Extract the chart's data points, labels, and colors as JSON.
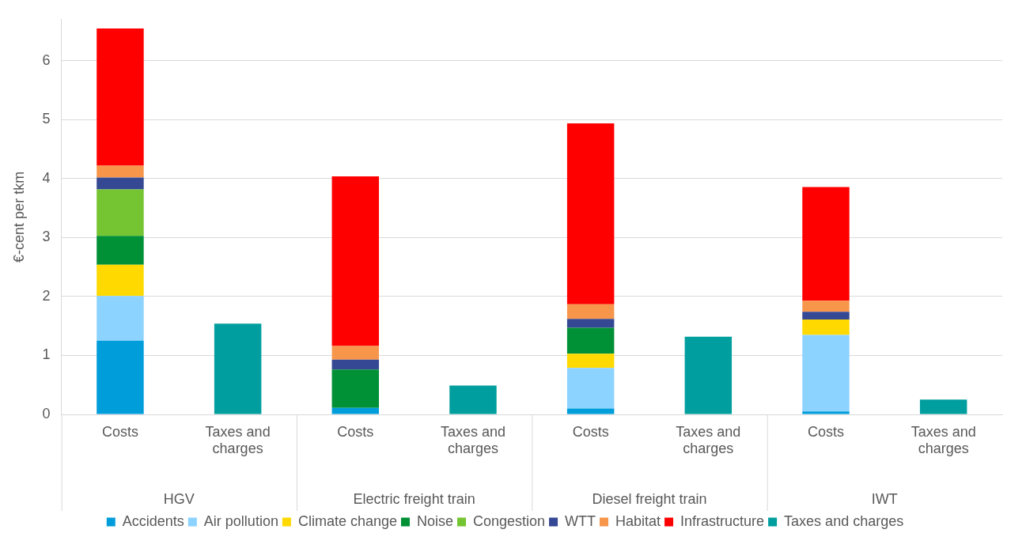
{
  "chart_data": {
    "type": "bar",
    "stacked": true,
    "ylabel": "€-cent per tkm",
    "categories": [
      "Costs",
      "Taxes and charges",
      "Costs",
      "Taxes and charges",
      "Costs",
      "Taxes and charges",
      "Costs",
      "Taxes and charges"
    ],
    "annotations": [
      "HGV",
      "Electric freight train",
      "Diesel freight train",
      "IWT"
    ],
    "series": [
      {
        "name": "Accidents",
        "color": "#009ddb",
        "values": [
          1.25,
          null,
          0.11,
          null,
          0.1,
          null,
          0.05,
          null
        ]
      },
      {
        "name": "Air pollution",
        "color": "#8dd3ff",
        "values": [
          0.76,
          null,
          null,
          null,
          0.69,
          null,
          1.3,
          null
        ]
      },
      {
        "name": "Climate change",
        "color": "#ffd900",
        "values": [
          0.53,
          null,
          null,
          null,
          0.24,
          null,
          0.26,
          null
        ]
      },
      {
        "name": "Noise",
        "color": "#009036",
        "values": [
          0.49,
          null,
          0.65,
          null,
          0.44,
          null,
          null,
          null
        ]
      },
      {
        "name": "Congestion",
        "color": "#74c531",
        "values": [
          0.79,
          null,
          null,
          null,
          null,
          null,
          null,
          null
        ]
      },
      {
        "name": "WTT",
        "color": "#344893",
        "values": [
          0.2,
          null,
          0.17,
          null,
          0.15,
          null,
          0.13,
          null
        ]
      },
      {
        "name": "Habitat",
        "color": "#f7964a",
        "values": [
          0.2,
          null,
          0.23,
          null,
          0.25,
          null,
          0.19,
          null
        ]
      },
      {
        "name": "Infrastructure",
        "color": "#ff0000",
        "values": [
          2.33,
          null,
          2.88,
          null,
          3.07,
          null,
          1.93,
          null
        ]
      },
      {
        "name": "Taxes and charges",
        "color": "#009e9e",
        "values": [
          null,
          1.54,
          null,
          0.49,
          null,
          1.32,
          null,
          0.25
        ]
      }
    ],
    "ylim": [
      0,
      6.7
    ],
    "yticks": [
      0,
      1,
      2,
      3,
      4,
      5,
      6
    ],
    "grid": "y",
    "legend": "bottom"
  }
}
